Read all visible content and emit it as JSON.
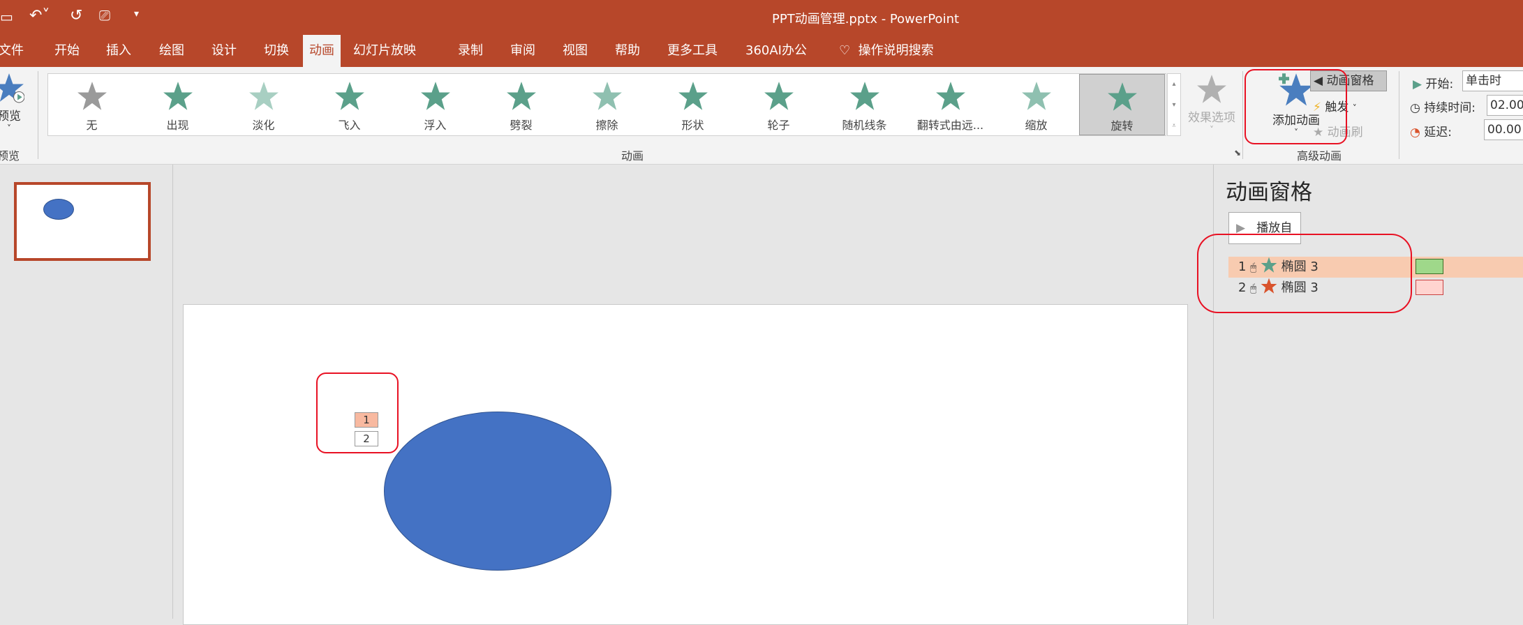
{
  "app": {
    "title": "PPT动画管理.pptx  -  PowerPoint"
  },
  "quick_access": {
    "icons": [
      "save-icon",
      "undo-icon",
      "redo-icon",
      "present-icon",
      "customize-icon"
    ]
  },
  "tabs": [
    {
      "label": "文件"
    },
    {
      "label": "开始"
    },
    {
      "label": "插入"
    },
    {
      "label": "绘图"
    },
    {
      "label": "设计"
    },
    {
      "label": "切换"
    },
    {
      "label": "动画",
      "active": true
    },
    {
      "label": "幻灯片放映"
    },
    {
      "label": "录制"
    },
    {
      "label": "审阅"
    },
    {
      "label": "视图"
    },
    {
      "label": "帮助"
    },
    {
      "label": "更多工具"
    },
    {
      "label": "360AI办公"
    },
    {
      "label": "操作说明搜索"
    }
  ],
  "ribbon": {
    "preview": {
      "label": "预览",
      "group": "预览"
    },
    "animations": {
      "group": "动画",
      "items": [
        {
          "label": "无"
        },
        {
          "label": "出现"
        },
        {
          "label": "淡化"
        },
        {
          "label": "飞入"
        },
        {
          "label": "浮入"
        },
        {
          "label": "劈裂"
        },
        {
          "label": "擦除"
        },
        {
          "label": "形状"
        },
        {
          "label": "轮子"
        },
        {
          "label": "随机线条"
        },
        {
          "label": "翻转式由远..."
        },
        {
          "label": "缩放"
        },
        {
          "label": "旋转",
          "selected": true
        }
      ],
      "effect_options": "效果选项"
    },
    "advanced": {
      "group": "高级动画",
      "add_animation": "添加动画",
      "animation_pane": "动画窗格",
      "trigger": "触发",
      "painter": "动画刷"
    },
    "timing": {
      "start_label": "开始:",
      "start_value": "单击时",
      "duration_label": "持续时间:",
      "duration_value": "02.00",
      "delay_label": "延迟:",
      "delay_value": "00.00"
    }
  },
  "slide": {
    "tags": [
      "1",
      "2"
    ],
    "shape_color": "#4472c4"
  },
  "anim_pane": {
    "title": "动画窗格",
    "play_label": "播放自",
    "items": [
      {
        "num": "1",
        "name": "椭圆 3",
        "star_color": "#5ba08a",
        "bar_color": "#9fd88a",
        "selected": true
      },
      {
        "num": "2",
        "name": "椭圆 3",
        "star_color": "#d9532c",
        "bar_color": "#ffd4d0"
      }
    ]
  },
  "colors": {
    "accent": "#b7472a",
    "highlight": "#e81123"
  }
}
